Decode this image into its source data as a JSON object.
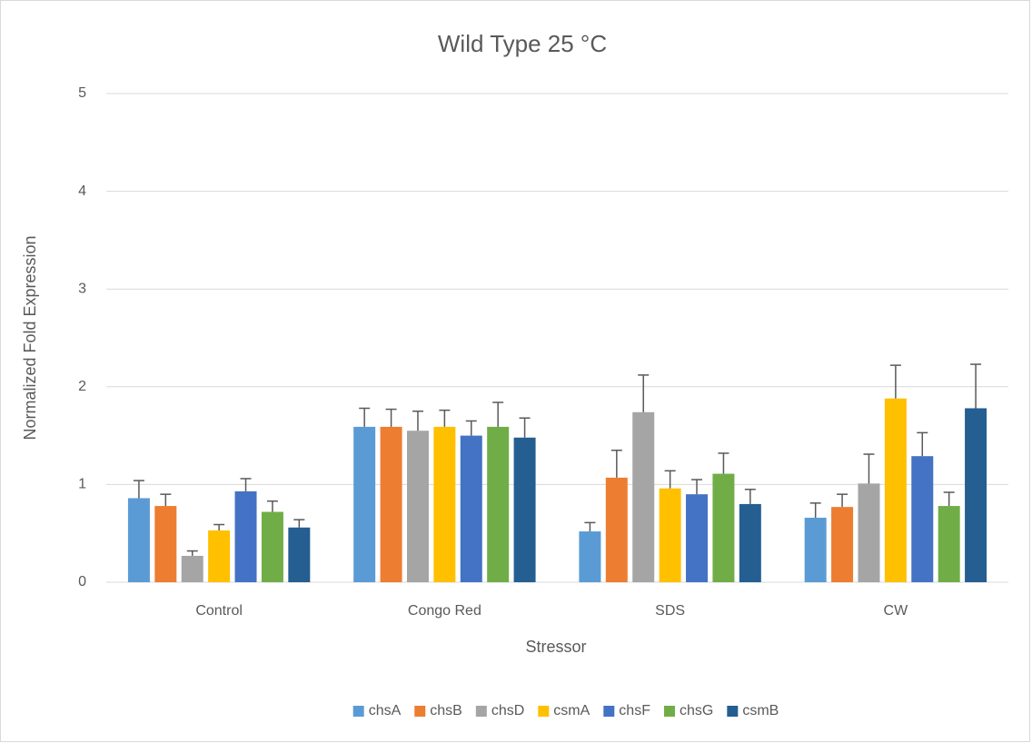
{
  "chart_data": {
    "type": "bar",
    "title": "Wild Type 25 °C",
    "x_label": "Stressor",
    "y_label": "Normalized Fold Expression",
    "categories": [
      "Control",
      "Congo Red",
      "SDS",
      "CW"
    ],
    "series": [
      {
        "name": "chsA",
        "color": "#5b9bd5",
        "values": [
          0.86,
          1.59,
          0.52,
          0.66
        ],
        "errors": [
          0.18,
          0.19,
          0.09,
          0.15
        ]
      },
      {
        "name": "chsB",
        "color": "#ed7d31",
        "values": [
          0.78,
          1.59,
          1.07,
          0.77
        ],
        "errors": [
          0.12,
          0.18,
          0.28,
          0.13
        ]
      },
      {
        "name": "chsD",
        "color": "#a5a5a5",
        "values": [
          0.27,
          1.55,
          1.74,
          1.01
        ],
        "errors": [
          0.05,
          0.2,
          0.38,
          0.3
        ]
      },
      {
        "name": "csmA",
        "color": "#ffc000",
        "values": [
          0.53,
          1.59,
          0.96,
          1.88
        ],
        "errors": [
          0.06,
          0.17,
          0.18,
          0.34
        ]
      },
      {
        "name": "chsF",
        "color": "#4472c4",
        "values": [
          0.93,
          1.5,
          0.9,
          1.29
        ],
        "errors": [
          0.13,
          0.15,
          0.15,
          0.24
        ]
      },
      {
        "name": "chsG",
        "color": "#70ad47",
        "values": [
          0.72,
          1.59,
          1.11,
          0.78
        ],
        "errors": [
          0.11,
          0.25,
          0.21,
          0.14
        ]
      },
      {
        "name": "csmB",
        "color": "#255e91",
        "values": [
          0.56,
          1.48,
          0.8,
          1.78
        ],
        "errors": [
          0.08,
          0.2,
          0.15,
          0.45
        ]
      }
    ],
    "ylim": [
      0,
      5
    ],
    "yticks": [
      0,
      1,
      2,
      3,
      4,
      5
    ],
    "grid": true,
    "legend": "bottom"
  }
}
